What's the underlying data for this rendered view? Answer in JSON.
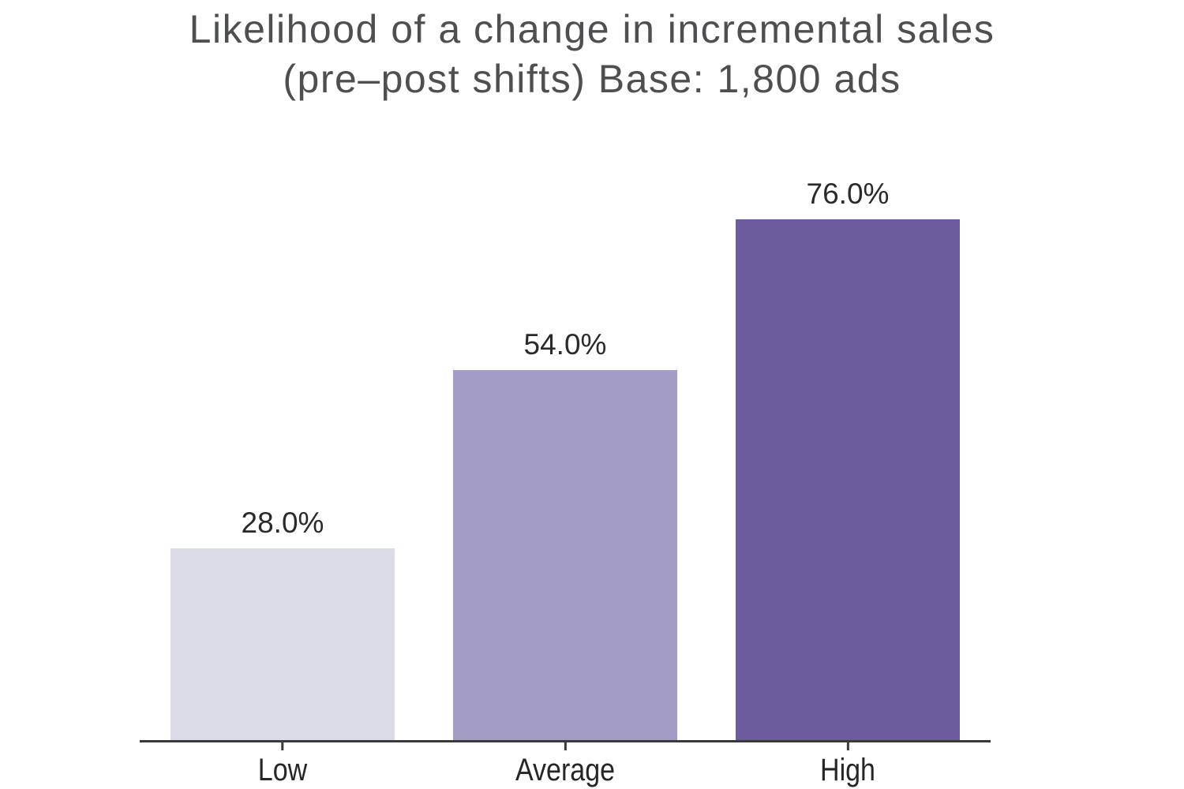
{
  "title": {
    "line1": "Likelihood of a change in incremental sales",
    "line2": "(pre–post shifts) Base: 1,800 ads"
  },
  "colors": {
    "background": "#ffffff",
    "title_text": "#4e4f51",
    "label_text": "#2a2a2a",
    "axis": "#3a3a3c",
    "bar_low": "#dbdae7",
    "bar_average": "#a29cc6",
    "bar_high": "#6c5b9d"
  },
  "chart_data": {
    "type": "bar",
    "title": "Likelihood of a change in incremental sales (pre–post shifts) Base: 1,800 ads",
    "categories": [
      "Low",
      "Average",
      "High"
    ],
    "values": [
      28.0,
      54.0,
      76.0
    ],
    "value_labels": [
      "28.0%",
      "54.0%",
      "76.0%"
    ],
    "colors": [
      "#dbdae7",
      "#a29cc6",
      "#6c5b9d"
    ],
    "xlabel": "",
    "ylabel": "",
    "ylim": [
      0,
      100
    ],
    "grid": false,
    "legend": false,
    "y_axis_visible": false,
    "value_label_position": "above-bar"
  }
}
